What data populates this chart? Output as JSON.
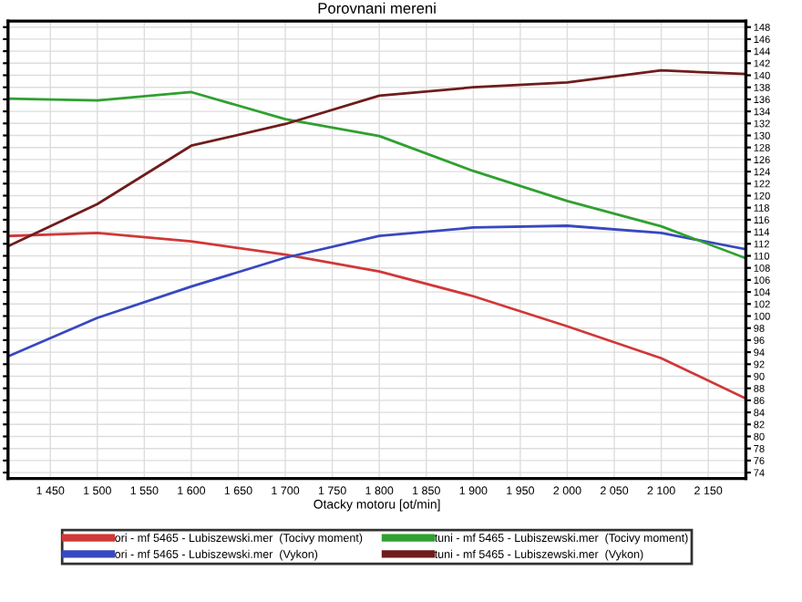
{
  "chart_data": {
    "type": "line",
    "title": "Porovnani mereni",
    "xlabel": "Otacky motoru [ot/min]",
    "x": [
      1405,
      1500,
      1600,
      1700,
      1800,
      1900,
      2000,
      2100,
      2190
    ],
    "series": [
      {
        "name": "ori - mf 5465 - Lubiszewski.mer  (Tocivy moment)",
        "color": "#d03838",
        "values": [
          113.3,
          113.8,
          112.4,
          110.2,
          107.4,
          103.3,
          98.3,
          93,
          86.3
        ]
      },
      {
        "name": "ori - mf 5465 - Lubiszewski.mer  (Vykon)",
        "color": "#3848c0",
        "values": [
          93.3,
          99.7,
          104.9,
          109.7,
          113.3,
          114.7,
          115,
          113.8,
          111.1
        ]
      },
      {
        "name": "tuni - mf 5465 - Lubiszewski.mer  (Tocivy moment)",
        "color": "#30a030",
        "values": [
          136.1,
          135.8,
          137.2,
          132.7,
          129.9,
          124.1,
          119.1,
          114.9,
          109.6
        ]
      },
      {
        "name": "tuni - mf 5465 - Lubiszewski.mer  (Vykon)",
        "color": "#701c1c",
        "values": [
          111.6,
          118.6,
          128.3,
          131.9,
          136.6,
          138,
          138.8,
          140.8,
          140.2
        ]
      }
    ],
    "xlim": [
      1405,
      2190
    ],
    "xticks": [
      {
        "value": 1450,
        "label": "1 450"
      },
      {
        "value": 1500,
        "label": "1 500"
      },
      {
        "value": 1550,
        "label": "1 550"
      },
      {
        "value": 1600,
        "label": "1 600"
      },
      {
        "value": 1650,
        "label": "1 650"
      },
      {
        "value": 1700,
        "label": "1 700"
      },
      {
        "value": 1750,
        "label": "1 750"
      },
      {
        "value": 1800,
        "label": "1 800"
      },
      {
        "value": 1850,
        "label": "1 850"
      },
      {
        "value": 1900,
        "label": "1 900"
      },
      {
        "value": 1950,
        "label": "1 950"
      },
      {
        "value": 2000,
        "label": "2 000"
      },
      {
        "value": 2050,
        "label": "2 050"
      },
      {
        "value": 2100,
        "label": "2 100"
      },
      {
        "value": 2150,
        "label": "2 150"
      }
    ],
    "ylim": [
      73,
      149
    ],
    "yticks": [
      74,
      76,
      78,
      80,
      82,
      84,
      86,
      88,
      90,
      92,
      94,
      96,
      98,
      100,
      102,
      104,
      106,
      108,
      110,
      112,
      114,
      116,
      118,
      120,
      122,
      124,
      126,
      128,
      130,
      132,
      134,
      136,
      138,
      140,
      142,
      144,
      146,
      148
    ],
    "grid": true,
    "legend": "bottom",
    "marker": "none",
    "line_style": "solid"
  }
}
